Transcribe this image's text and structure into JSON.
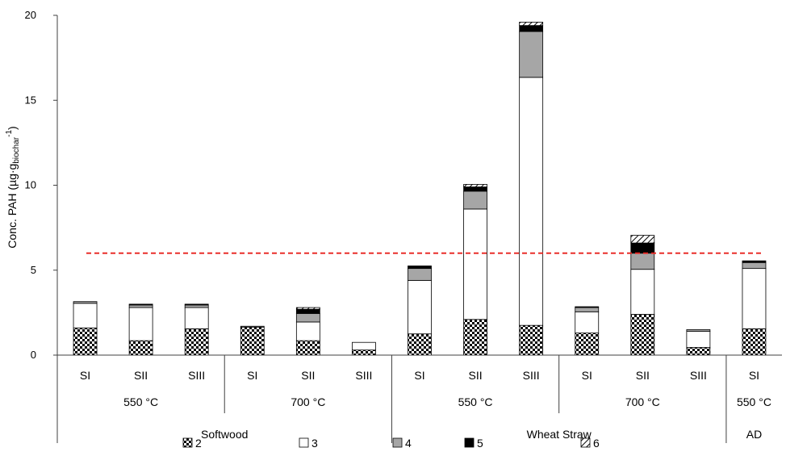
{
  "chart_data": {
    "type": "bar",
    "stacked": true,
    "title": "",
    "ylabel": "Conc. PAH (µg·g",
    "ylabel_sub": "biochar",
    "ylabel_sup": "-1",
    "ylabel_close": ")",
    "ylim": [
      0,
      20
    ],
    "yticks": [
      "0",
      "5",
      "10",
      "15",
      "20"
    ],
    "grid": false,
    "categories": [
      "SI",
      "SII",
      "SIII",
      "SI",
      "SII",
      "SIII",
      "SI",
      "SII",
      "SIII",
      "SI",
      "SII",
      "SIII",
      "SI"
    ],
    "temperature_groups": [
      {
        "label": "550 °C",
        "span": [
          0,
          2
        ]
      },
      {
        "label": "700 °C",
        "span": [
          3,
          5
        ]
      },
      {
        "label": "550 °C",
        "span": [
          6,
          8
        ]
      },
      {
        "label": "700 °C",
        "span": [
          9,
          11
        ]
      },
      {
        "label": "550 °C",
        "span": [
          12,
          12
        ]
      }
    ],
    "feedstock_groups": [
      {
        "label": "Softwood",
        "span": [
          0,
          5
        ]
      },
      {
        "label": "Wheat Straw",
        "span": [
          6,
          11
        ]
      },
      {
        "label": "AD",
        "span": [
          12,
          12
        ]
      }
    ],
    "series": [
      {
        "name": "2",
        "pattern": "checker",
        "values": [
          1.6,
          0.85,
          1.55,
          1.65,
          0.85,
          0.3,
          1.25,
          2.1,
          1.75,
          1.3,
          2.4,
          0.45,
          1.55
        ]
      },
      {
        "name": "3",
        "pattern": "white",
        "values": [
          1.45,
          1.95,
          1.25,
          0.0,
          1.1,
          0.45,
          3.15,
          6.5,
          14.6,
          1.25,
          2.65,
          0.95,
          3.55
        ]
      },
      {
        "name": "4",
        "pattern": "gray",
        "values": [
          0.1,
          0.15,
          0.15,
          0.05,
          0.5,
          0.0,
          0.7,
          1.05,
          2.7,
          0.25,
          0.95,
          0.1,
          0.35
        ]
      },
      {
        "name": "5",
        "pattern": "black",
        "values": [
          0.0,
          0.05,
          0.05,
          0.0,
          0.25,
          0.0,
          0.15,
          0.25,
          0.35,
          0.05,
          0.6,
          0.0,
          0.1
        ]
      },
      {
        "name": "6",
        "pattern": "hatch",
        "values": [
          0.0,
          0.0,
          0.0,
          0.0,
          0.1,
          0.0,
          0.0,
          0.15,
          0.2,
          0.0,
          0.45,
          0.0,
          0.0
        ]
      }
    ],
    "reference_line": {
      "value": 6,
      "style": "dashed",
      "color": "#e8201c"
    },
    "legend": {
      "position": "bottom",
      "items": [
        "2",
        "3",
        "4",
        "5",
        "6"
      ]
    },
    "colors": {
      "black": "#000000",
      "gray": "#a6a6a6",
      "white": "#ffffff",
      "axis": "#404040",
      "refline": "#e8201c"
    }
  }
}
